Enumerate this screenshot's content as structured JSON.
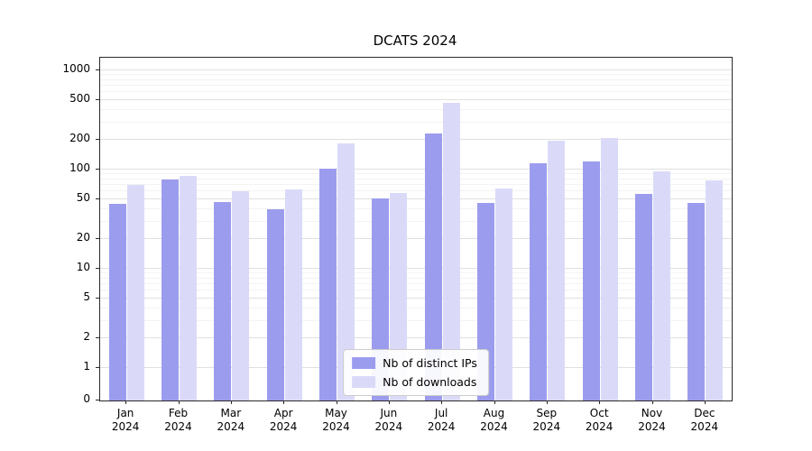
{
  "title": "DCATS 2024",
  "colors": {
    "ips_bar": "#9c9cee",
    "downloads_bar": "#dadaf8",
    "grid_major": "#e0e0e0",
    "grid_minor": "#f3f3f3",
    "axis": "#2a2a2a",
    "background": "#ffffff"
  },
  "legend": {
    "items": [
      {
        "label": "Nb of distinct IPs",
        "series_key": "ips_bar"
      },
      {
        "label": "Nb of downloads",
        "series_key": "downloads_bar"
      }
    ]
  },
  "chart_data": {
    "type": "bar",
    "title": "DCATS 2024",
    "categories": [
      "Jan 2024",
      "Feb 2024",
      "Mar 2024",
      "Apr 2024",
      "May 2024",
      "Jun 2024",
      "Jul 2024",
      "Aug 2024",
      "Sep 2024",
      "Oct 2024",
      "Nov 2024",
      "Dec 2024"
    ],
    "x_tick_lines": [
      [
        "Jan",
        "2024"
      ],
      [
        "Feb",
        "2024"
      ],
      [
        "Mar",
        "2024"
      ],
      [
        "Apr",
        "2024"
      ],
      [
        "May",
        "2024"
      ],
      [
        "Jun",
        "2024"
      ],
      [
        "Jul",
        "2024"
      ],
      [
        "Aug",
        "2024"
      ],
      [
        "Sep",
        "2024"
      ],
      [
        "Oct",
        "2024"
      ],
      [
        "Nov",
        "2024"
      ],
      [
        "Dec",
        "2024"
      ]
    ],
    "series": [
      {
        "name": "Nb of distinct IPs",
        "values": [
          45,
          80,
          47,
          40,
          102,
          51,
          230,
          46,
          115,
          120,
          57,
          46
        ]
      },
      {
        "name": "Nb of downloads",
        "values": [
          70,
          86,
          60,
          63,
          185,
          58,
          470,
          65,
          195,
          210,
          95,
          78
        ]
      }
    ],
    "xlabel": "",
    "ylabel": "",
    "yscale": "symlog",
    "y_ticks": [
      0,
      1,
      2,
      5,
      10,
      20,
      50,
      100,
      200,
      500,
      1000
    ],
    "y_minor_ticks": [
      3,
      4,
      6,
      7,
      8,
      9,
      30,
      40,
      60,
      70,
      80,
      90,
      300,
      400,
      600,
      700,
      800,
      900
    ],
    "ylim": [
      0,
      1300
    ],
    "grid": true,
    "legend_position": "lower center"
  }
}
